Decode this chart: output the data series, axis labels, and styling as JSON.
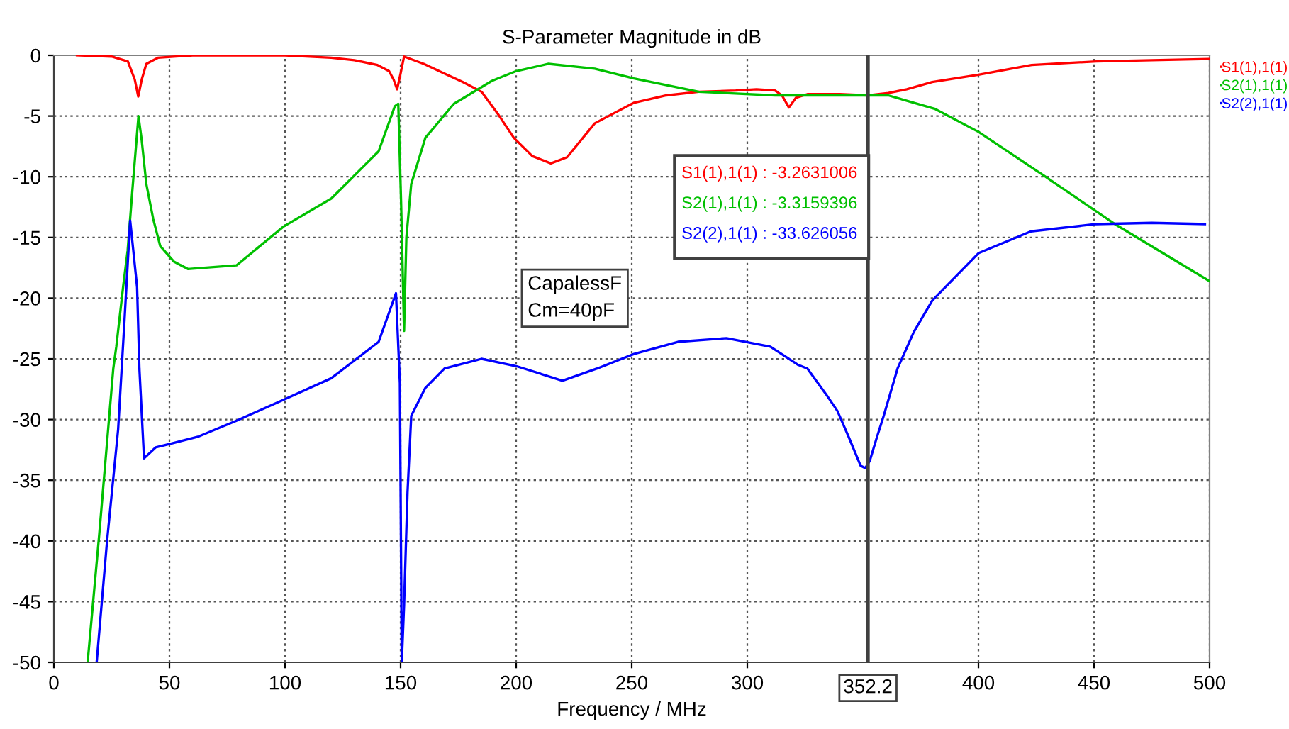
{
  "chart_data": {
    "type": "line",
    "title": "S-Parameter Magnitude in dB",
    "xlabel": "Frequency / MHz",
    "xlim": [
      0,
      500
    ],
    "ylim": [
      -50,
      0
    ],
    "xticks": [
      0,
      50,
      100,
      150,
      200,
      250,
      300,
      400,
      450,
      500
    ],
    "yticks": [
      0,
      -5,
      -10,
      -15,
      -20,
      -25,
      -30,
      -35,
      -40,
      -45,
      -50
    ],
    "grid": true,
    "legend": "top right",
    "line_style": "solid",
    "marker": "none",
    "ref_lines": [
      {
        "axis": "x",
        "value": 352.2,
        "label": "352.2",
        "color": "#404040"
      }
    ],
    "annotations": [
      "S1(1),1(1) : -3.2631006",
      "S2(1),1(1) : -3.3159396",
      "S2(2),1(1) : -33.626056",
      "CapalessF\nCm=40pF"
    ],
    "series": [
      {
        "name": "S1(1),1(1)",
        "color": "#ff0000",
        "x": [
          10,
          25,
          32,
          35,
          36.5,
          38,
          40,
          45,
          60,
          100,
          120,
          130,
          140,
          145,
          147,
          148.5,
          150,
          151.5,
          160,
          169,
          177,
          185,
          192,
          199,
          207,
          215,
          222,
          234,
          251,
          265,
          279,
          295,
          304,
          312,
          315,
          318,
          321,
          326,
          340,
          352.2,
          361,
          369,
          380,
          400,
          423,
          451,
          475,
          500
        ],
        "values": [
          0,
          -0.1,
          -0.5,
          -2,
          -3.4,
          -2,
          -0.7,
          -0.2,
          0,
          0,
          -0.2,
          -0.4,
          -0.8,
          -1.3,
          -2,
          -2.8,
          -1.5,
          -0.1,
          -0.7,
          -1.5,
          -2.2,
          -3.0,
          -4.8,
          -6.8,
          -8.3,
          -8.9,
          -8.4,
          -5.6,
          -3.9,
          -3.3,
          -3.0,
          -2.9,
          -2.8,
          -2.9,
          -3.3,
          -4.3,
          -3.5,
          -3.2,
          -3.2,
          -3.3,
          -3.1,
          -2.8,
          -2.2,
          -1.6,
          -0.8,
          -0.5,
          -0.4,
          -0.3
        ]
      },
      {
        "name": "S2(1),1(1)",
        "color": "#00c000",
        "x": [
          14.6,
          19.6,
          25.7,
          27,
          30,
          31.9,
          34,
          36.6,
          38,
          40,
          43,
          46,
          52,
          58,
          79,
          99.4,
          120,
          140.5,
          147.5,
          149,
          150.2,
          151.5,
          152.5,
          154.6,
          160.7,
          173,
          189.5,
          200,
          214,
          234,
          251,
          279,
          312,
          340,
          352.2,
          361,
          381,
          400,
          429,
          459,
          500
        ],
        "values": [
          -50,
          -39.5,
          -25.8,
          -24,
          -19,
          -16.1,
          -11,
          -5.0,
          -7,
          -10.6,
          -13.5,
          -15.7,
          -17,
          -17.6,
          -17.3,
          -14.1,
          -11.8,
          -7.9,
          -4.2,
          -4.0,
          -12,
          -22.7,
          -15,
          -10.6,
          -6.8,
          -4.0,
          -2.1,
          -1.3,
          -0.7,
          -1.1,
          -1.9,
          -3.0,
          -3.3,
          -3.3,
          -3.3,
          -3.3,
          -4.4,
          -6.3,
          -10.0,
          -13.9,
          -18.6
        ]
      },
      {
        "name": "S2(2),1(1)",
        "color": "#0000ff",
        "x": [
          18.5,
          23,
          27.8,
          30.5,
          33,
          36,
          37,
          39,
          44,
          50.3,
          62.6,
          79,
          99,
          120,
          140.5,
          148,
          149.7,
          150.5,
          151.5,
          153,
          154.6,
          160.7,
          169,
          185,
          200,
          220,
          235,
          251,
          270,
          291,
          310,
          322,
          326,
          334,
          339,
          344,
          349,
          351,
          353,
          356,
          359,
          365,
          372,
          380,
          400,
          422.7,
          451,
          475,
          498
        ],
        "values": [
          -50,
          -40,
          -30.8,
          -22,
          -13.6,
          -19.1,
          -25.8,
          -33.2,
          -32.3,
          -32.0,
          -31.4,
          -30.1,
          -28.4,
          -26.6,
          -23.6,
          -19.6,
          -27,
          -50,
          -45.3,
          -36,
          -29.7,
          -27.4,
          -25.8,
          -25.0,
          -25.6,
          -26.8,
          -25.8,
          -24.6,
          -23.6,
          -23.3,
          -24.0,
          -25.5,
          -25.8,
          -27.9,
          -29.3,
          -31.5,
          -33.8,
          -34.0,
          -33.4,
          -31.5,
          -29.7,
          -25.8,
          -22.8,
          -20.2,
          -16.3,
          -14.5,
          -13.9,
          -13.8,
          -13.9
        ]
      }
    ]
  }
}
